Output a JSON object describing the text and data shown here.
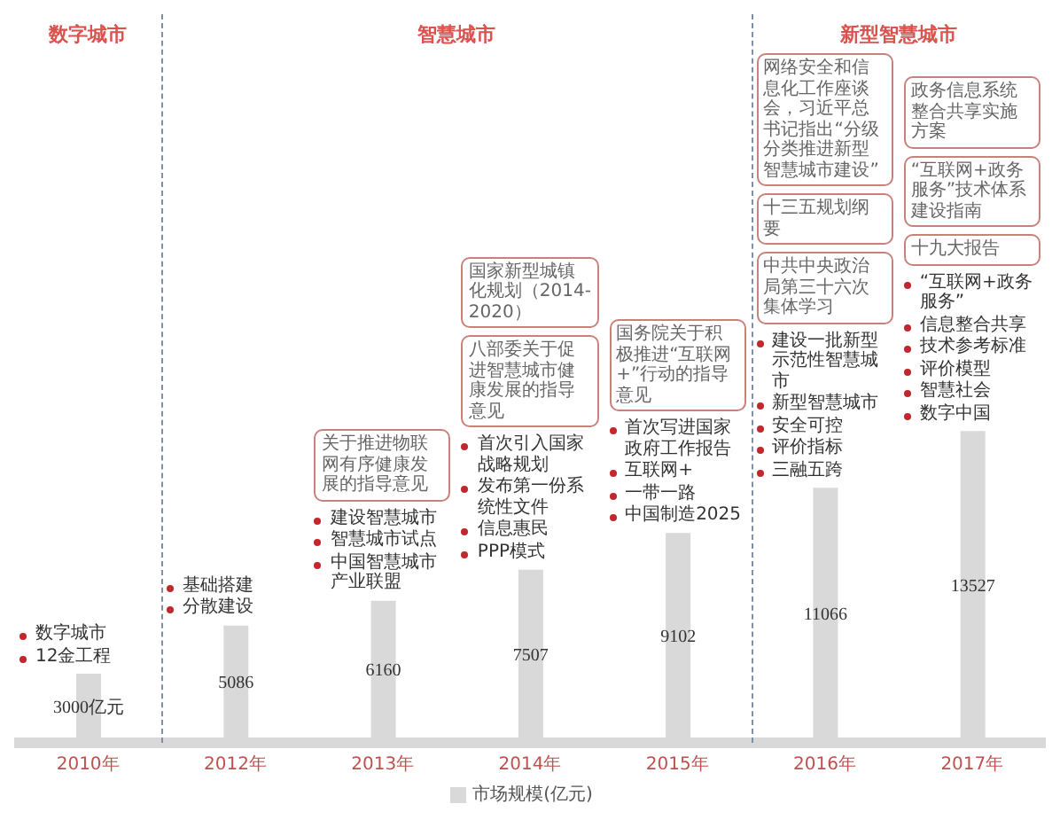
{
  "chart_data": {
    "type": "bar",
    "categories": [
      "2010年",
      "2012年",
      "2013年",
      "2014年",
      "2015年",
      "2016年",
      "2017年"
    ],
    "series": [
      {
        "name": "市场规模(亿元)",
        "color": "#d9d9d9",
        "values": [
          3000,
          5086,
          6160,
          7507,
          9102,
          11066,
          13527
        ],
        "value_labels": [
          "3000亿元",
          "5086",
          "6160",
          "7507",
          "9102",
          "11066",
          "13527"
        ]
      }
    ],
    "legend": "bottom",
    "annotations": [
      "数字城市",
      "智慧城市",
      "新型智慧城市",
      "数字城市",
      "12金工程",
      "基础搭建",
      "分散建设",
      "关于推进物联网有序健康发展的指导意见",
      "建设智慧城市",
      "智慧城市试点",
      "中国智慧城市产业联盟",
      "国家新型城镇化规划（2014-2020）",
      "八部委关于促进智慧城市健康发展的指导意见",
      "首次引入国家战略规划",
      "发布第一份系统性文件",
      "信息惠民",
      "PPP模式",
      "国务院关于积极推进“互联网+”行动的指导意见",
      "首次写进国家政府工作报告",
      "互联网+",
      "一带一路",
      "中国制造2025",
      "网络安全和信息化工作座谈会，习近平总书记指出“分级分类推进新型智慧城市建设”",
      "十三五规划纲要",
      "中共中央政治局第三十六次集体学习",
      "建设一批新型示范性智慧城市",
      "新型智慧城市",
      "安全可控",
      "评价指标",
      "三融五跨",
      "政务信息系统整合共享实施方案",
      "“互联网+政务服务”技术体系建设指南",
      "十九大报告",
      "“互联网+政务服务”",
      "信息整合共享",
      "技术参考标准",
      "评价模型",
      "智慧社会",
      "数字中国"
    ]
  }
}
